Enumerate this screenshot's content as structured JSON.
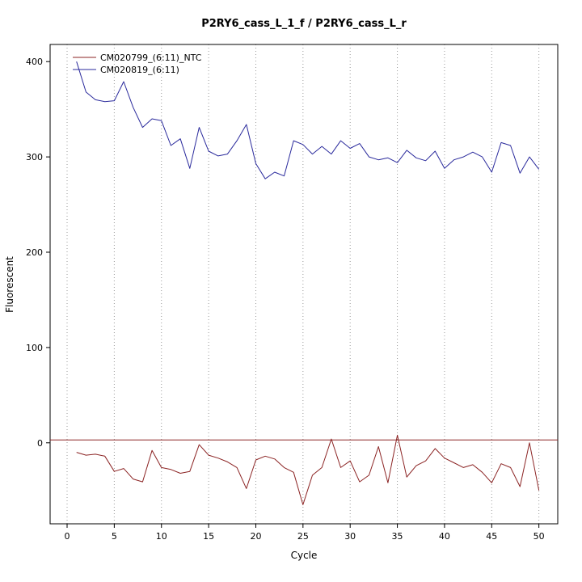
{
  "window": {
    "background": "#ffffff"
  },
  "chart_data": {
    "type": "line",
    "title": "P2RY6_cass_L_1_f / P2RY6_cass_L_r",
    "xlabel": "Cycle",
    "ylabel": "Fluorescent",
    "xlim": [
      -1.8,
      52
    ],
    "ylim": [
      -85,
      418
    ],
    "xticks": [
      0,
      5,
      10,
      15,
      20,
      25,
      30,
      35,
      40,
      45,
      50
    ],
    "yticks": [
      0,
      100,
      200,
      300,
      400
    ],
    "grid": "vertical-dotted",
    "legend_position": "top-left",
    "x": [
      1,
      2,
      3,
      4,
      5,
      6,
      7,
      8,
      9,
      10,
      11,
      12,
      13,
      14,
      15,
      16,
      17,
      18,
      19,
      20,
      21,
      22,
      23,
      24,
      25,
      26,
      27,
      28,
      29,
      30,
      31,
      32,
      33,
      34,
      35,
      36,
      37,
      38,
      39,
      40,
      41,
      42,
      43,
      44,
      45,
      46,
      47,
      48,
      49,
      50
    ],
    "series": [
      {
        "name": "CM020799_(6:11)_NTC",
        "color": "#8b2323",
        "values": [
          -10,
          -13,
          -12,
          -14,
          -30,
          -27,
          -38,
          -41,
          -8,
          -26,
          -28,
          -32,
          -30,
          -2,
          -13,
          -16,
          -20,
          -26,
          -48,
          -18,
          -14,
          -17,
          -26,
          -31,
          -65,
          -34,
          -26,
          4,
          -26,
          -19,
          -41,
          -34,
          -4,
          -42,
          8,
          -36,
          -24,
          -19,
          -6,
          -16,
          -21,
          -26,
          -23,
          -31,
          -42,
          -22,
          -26,
          -46,
          0,
          -50
        ]
      },
      {
        "name": "CM020819_(6:11)",
        "color": "#2a2a9c",
        "values": [
          400,
          368,
          360,
          358,
          359,
          379,
          352,
          331,
          340,
          338,
          312,
          319,
          288,
          331,
          306,
          301,
          303,
          317,
          334,
          293,
          277,
          284,
          280,
          317,
          313,
          303,
          311,
          303,
          317,
          309,
          314,
          300,
          297,
          299,
          294,
          307,
          299,
          296,
          306,
          288,
          297,
          300,
          305,
          300,
          284,
          315,
          312,
          283,
          300,
          287
        ]
      }
    ],
    "threshold_line": {
      "y": 3,
      "color": "#8b2323"
    }
  }
}
